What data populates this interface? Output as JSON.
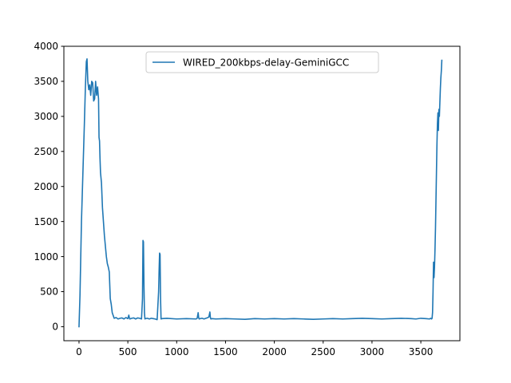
{
  "chart_data": {
    "type": "line",
    "title": "",
    "xlabel": "",
    "ylabel": "",
    "xlim": [
      -155,
      3900
    ],
    "ylim": [
      -200,
      4000
    ],
    "xticks": [
      0,
      500,
      1000,
      1500,
      2000,
      2500,
      3000,
      3500
    ],
    "yticks": [
      0,
      500,
      1000,
      1500,
      2000,
      2500,
      3000,
      3500,
      4000
    ],
    "grid": false,
    "legend_position": "top-center",
    "series": [
      {
        "name": "WIRED_200kbps-delay-GeminiGCC",
        "color": "#1f77b4",
        "x": [
          0,
          10,
          25,
          40,
          55,
          65,
          75,
          82,
          90,
          100,
          110,
          120,
          130,
          140,
          150,
          160,
          170,
          180,
          190,
          200,
          205,
          210,
          215,
          220,
          230,
          240,
          250,
          260,
          270,
          280,
          290,
          300,
          310,
          320,
          330,
          340,
          360,
          380,
          400,
          420,
          440,
          460,
          480,
          500,
          510,
          515,
          520,
          540,
          560,
          580,
          600,
          620,
          640,
          650,
          655,
          660,
          665,
          670,
          675,
          680,
          700,
          720,
          740,
          760,
          780,
          800,
          815,
          820,
          825,
          830,
          835,
          840,
          850,
          900,
          1000,
          1100,
          1200,
          1210,
          1220,
          1225,
          1230,
          1240,
          1260,
          1280,
          1300,
          1320,
          1330,
          1340,
          1345,
          1350,
          1360,
          1400,
          1500,
          1600,
          1700,
          1800,
          1900,
          2000,
          2100,
          2200,
          2300,
          2400,
          2500,
          2600,
          2700,
          2800,
          2900,
          3000,
          3100,
          3200,
          3300,
          3400,
          3450,
          3500,
          3550,
          3590,
          3600,
          3605,
          3610,
          3615,
          3620,
          3625,
          3630,
          3635,
          3640,
          3645,
          3650,
          3655,
          3660,
          3665,
          3670,
          3675,
          3680,
          3685,
          3690,
          3695,
          3700,
          3705,
          3710,
          3715
        ],
        "y": [
          0,
          450,
          1500,
          2200,
          2900,
          3400,
          3780,
          3820,
          3500,
          3380,
          3450,
          3300,
          3500,
          3480,
          3220,
          3250,
          3500,
          3300,
          3420,
          3250,
          2700,
          2650,
          2400,
          2200,
          2050,
          1700,
          1500,
          1300,
          1150,
          1000,
          900,
          850,
          780,
          400,
          320,
          200,
          120,
          130,
          110,
          120,
          125,
          110,
          130,
          115,
          165,
          130,
          110,
          120,
          125,
          110,
          125,
          120,
          110,
          400,
          1230,
          1210,
          600,
          200,
          110,
          115,
          120,
          110,
          120,
          115,
          110,
          100,
          500,
          800,
          1050,
          1030,
          400,
          110,
          115,
          120,
          110,
          115,
          110,
          120,
          200,
          130,
          110,
          115,
          120,
          110,
          120,
          130,
          140,
          210,
          130,
          110,
          115,
          110,
          115,
          110,
          105,
          115,
          110,
          115,
          110,
          115,
          110,
          105,
          110,
          115,
          110,
          115,
          120,
          115,
          110,
          115,
          120,
          115,
          110,
          120,
          115,
          110,
          120,
          115,
          110,
          120,
          200,
          500,
          920,
          700,
          850,
          1100,
          1400,
          1800,
          2200,
          2600,
          2900,
          3050,
          2800,
          3100,
          3000,
          3200,
          3400,
          3550,
          3650,
          3800
        ]
      }
    ]
  }
}
